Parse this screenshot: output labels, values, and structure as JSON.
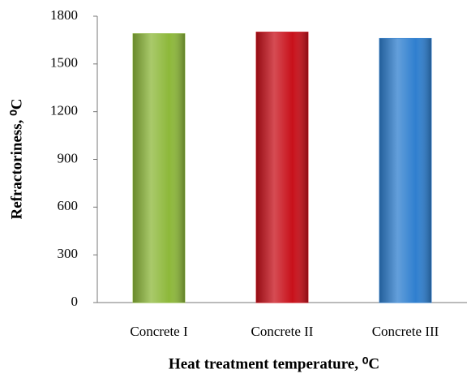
{
  "chart_data": {
    "type": "bar",
    "x_label": "Heat treatment temperature, ⁰C",
    "y_label": "Refractoriness, ⁰C",
    "categories": [
      "Concrete I",
      "Concrete II",
      "Concrete III"
    ],
    "values": [
      1690,
      1700,
      1660
    ],
    "colors": [
      "#8db83a",
      "#c8101a",
      "#2f7fcf"
    ],
    "ylim": [
      0,
      1800
    ],
    "yticks": [
      0,
      300,
      600,
      900,
      1200,
      1500,
      1800
    ],
    "grid": false
  }
}
